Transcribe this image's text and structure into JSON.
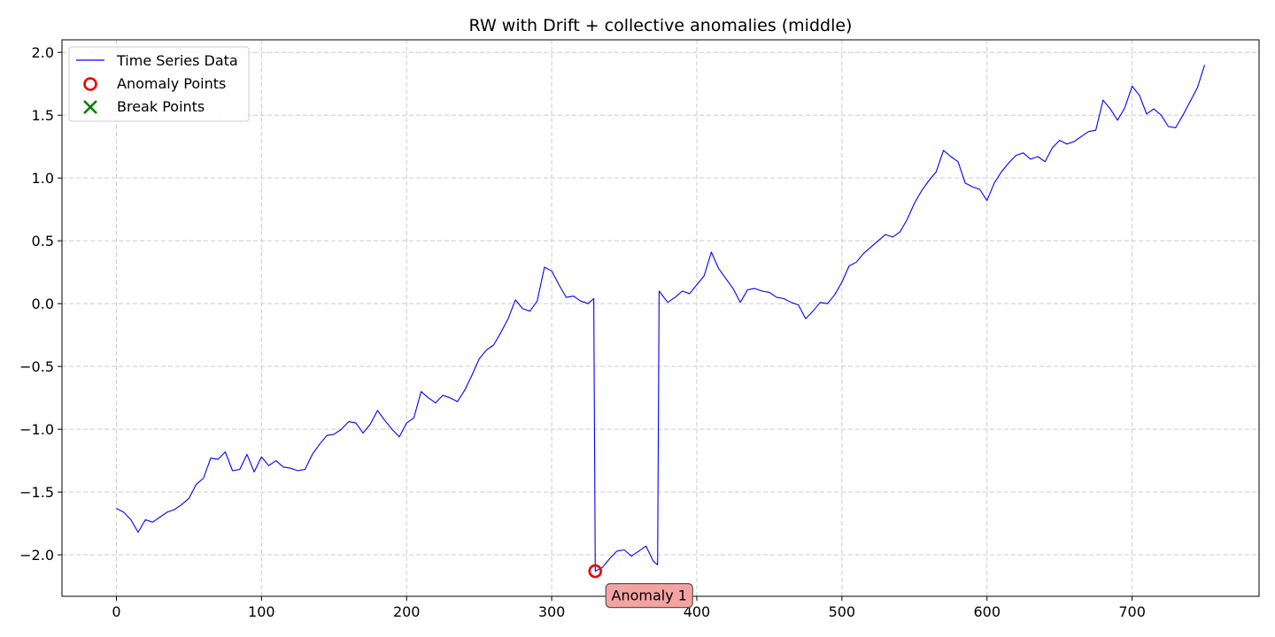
{
  "chart_data": {
    "type": "line",
    "title": "RW with Drift + collective anomalies (middle)",
    "xlabel": "",
    "ylabel": "",
    "xlim": [
      -37.5,
      787.5
    ],
    "ylim": [
      -2.33,
      2.1
    ],
    "xticks": [
      0,
      100,
      200,
      300,
      400,
      500,
      600,
      700
    ],
    "xtick_labels": [
      "0",
      "100",
      "200",
      "300",
      "400",
      "500",
      "600",
      "700"
    ],
    "yticks": [
      -2.0,
      -1.5,
      -1.0,
      -0.5,
      0.0,
      0.5,
      1.0,
      1.5,
      2.0
    ],
    "ytick_labels": [
      "−2.0",
      "−1.5",
      "−1.0",
      "−0.5",
      "0.0",
      "0.5",
      "1.0",
      "1.5",
      "2.0"
    ],
    "grid": true,
    "legend_position": "top-left",
    "legend": [
      "Time Series Data",
      "Anomaly Points",
      "Break Points"
    ],
    "colors": {
      "series": "#0000ff",
      "anomaly": "#ee0000",
      "break": "#008000",
      "annotation_fill": "#f4a3a3",
      "grid": "#cccccc"
    },
    "series": [
      {
        "name": "Time Series Data",
        "x": [
          0,
          5,
          10,
          15,
          20,
          25,
          30,
          35,
          40,
          45,
          50,
          55,
          60,
          65,
          70,
          75,
          80,
          85,
          90,
          95,
          100,
          105,
          110,
          115,
          120,
          125,
          130,
          135,
          140,
          145,
          150,
          155,
          160,
          165,
          170,
          175,
          180,
          185,
          190,
          195,
          200,
          205,
          210,
          215,
          220,
          225,
          230,
          235,
          240,
          245,
          250,
          255,
          260,
          265,
          270,
          275,
          280,
          285,
          290,
          295,
          300,
          305,
          310,
          315,
          320,
          325,
          329,
          330,
          335,
          340,
          345,
          350,
          355,
          360,
          365,
          370,
          373,
          374,
          380,
          385,
          390,
          395,
          400,
          405,
          410,
          415,
          420,
          425,
          430,
          435,
          440,
          445,
          450,
          455,
          460,
          465,
          470,
          475,
          480,
          485,
          490,
          495,
          500,
          505,
          510,
          515,
          520,
          525,
          530,
          535,
          540,
          545,
          550,
          555,
          560,
          565,
          570,
          575,
          580,
          585,
          590,
          595,
          600,
          605,
          610,
          615,
          620,
          625,
          630,
          635,
          640,
          645,
          650,
          655,
          660,
          665,
          670,
          675,
          680,
          685,
          690,
          695,
          700,
          705,
          710,
          715,
          720,
          725,
          730,
          735,
          740,
          745,
          750
        ],
        "values": [
          -1.63,
          -1.66,
          -1.72,
          -1.82,
          -1.72,
          -1.74,
          -1.7,
          -1.66,
          -1.64,
          -1.6,
          -1.55,
          -1.44,
          -1.39,
          -1.23,
          -1.24,
          -1.18,
          -1.33,
          -1.32,
          -1.2,
          -1.34,
          -1.22,
          -1.29,
          -1.25,
          -1.3,
          -1.31,
          -1.33,
          -1.32,
          -1.2,
          -1.12,
          -1.05,
          -1.04,
          -1.0,
          -0.94,
          -0.95,
          -1.03,
          -0.96,
          -0.85,
          -0.93,
          -1.0,
          -1.06,
          -0.95,
          -0.91,
          -0.7,
          -0.75,
          -0.79,
          -0.73,
          -0.75,
          -0.78,
          -0.69,
          -0.57,
          -0.44,
          -0.37,
          -0.33,
          -0.23,
          -0.12,
          0.03,
          -0.04,
          -0.06,
          0.02,
          0.29,
          0.26,
          0.15,
          0.05,
          0.06,
          0.02,
          0.0,
          0.04,
          -2.13,
          -2.1,
          -2.03,
          -1.97,
          -1.96,
          -2.01,
          -1.97,
          -1.93,
          -2.05,
          -2.08,
          0.1,
          0.01,
          0.05,
          0.1,
          0.08,
          0.15,
          0.22,
          0.41,
          0.28,
          0.2,
          0.12,
          0.01,
          0.11,
          0.12,
          0.1,
          0.09,
          0.05,
          0.04,
          0.01,
          -0.01,
          -0.12,
          -0.06,
          0.01,
          0.0,
          0.07,
          0.17,
          0.3,
          0.33,
          0.4,
          0.45,
          0.5,
          0.55,
          0.53,
          0.57,
          0.67,
          0.8,
          0.9,
          0.98,
          1.05,
          1.22,
          1.17,
          1.13,
          0.96,
          0.93,
          0.91,
          0.82,
          0.96,
          1.05,
          1.12,
          1.18,
          1.2,
          1.15,
          1.17,
          1.13,
          1.24,
          1.3,
          1.27,
          1.29,
          1.33,
          1.37,
          1.38,
          1.62,
          1.55,
          1.46,
          1.56,
          1.73,
          1.66,
          1.51,
          1.55,
          1.5,
          1.41,
          1.4,
          1.5,
          1.61,
          1.72,
          1.9
        ]
      }
    ],
    "anomaly_points": [
      {
        "x": 330,
        "y": -2.13
      }
    ],
    "annotations": [
      {
        "text": "Anomaly 1",
        "x": 330,
        "y": -2.13
      }
    ]
  }
}
